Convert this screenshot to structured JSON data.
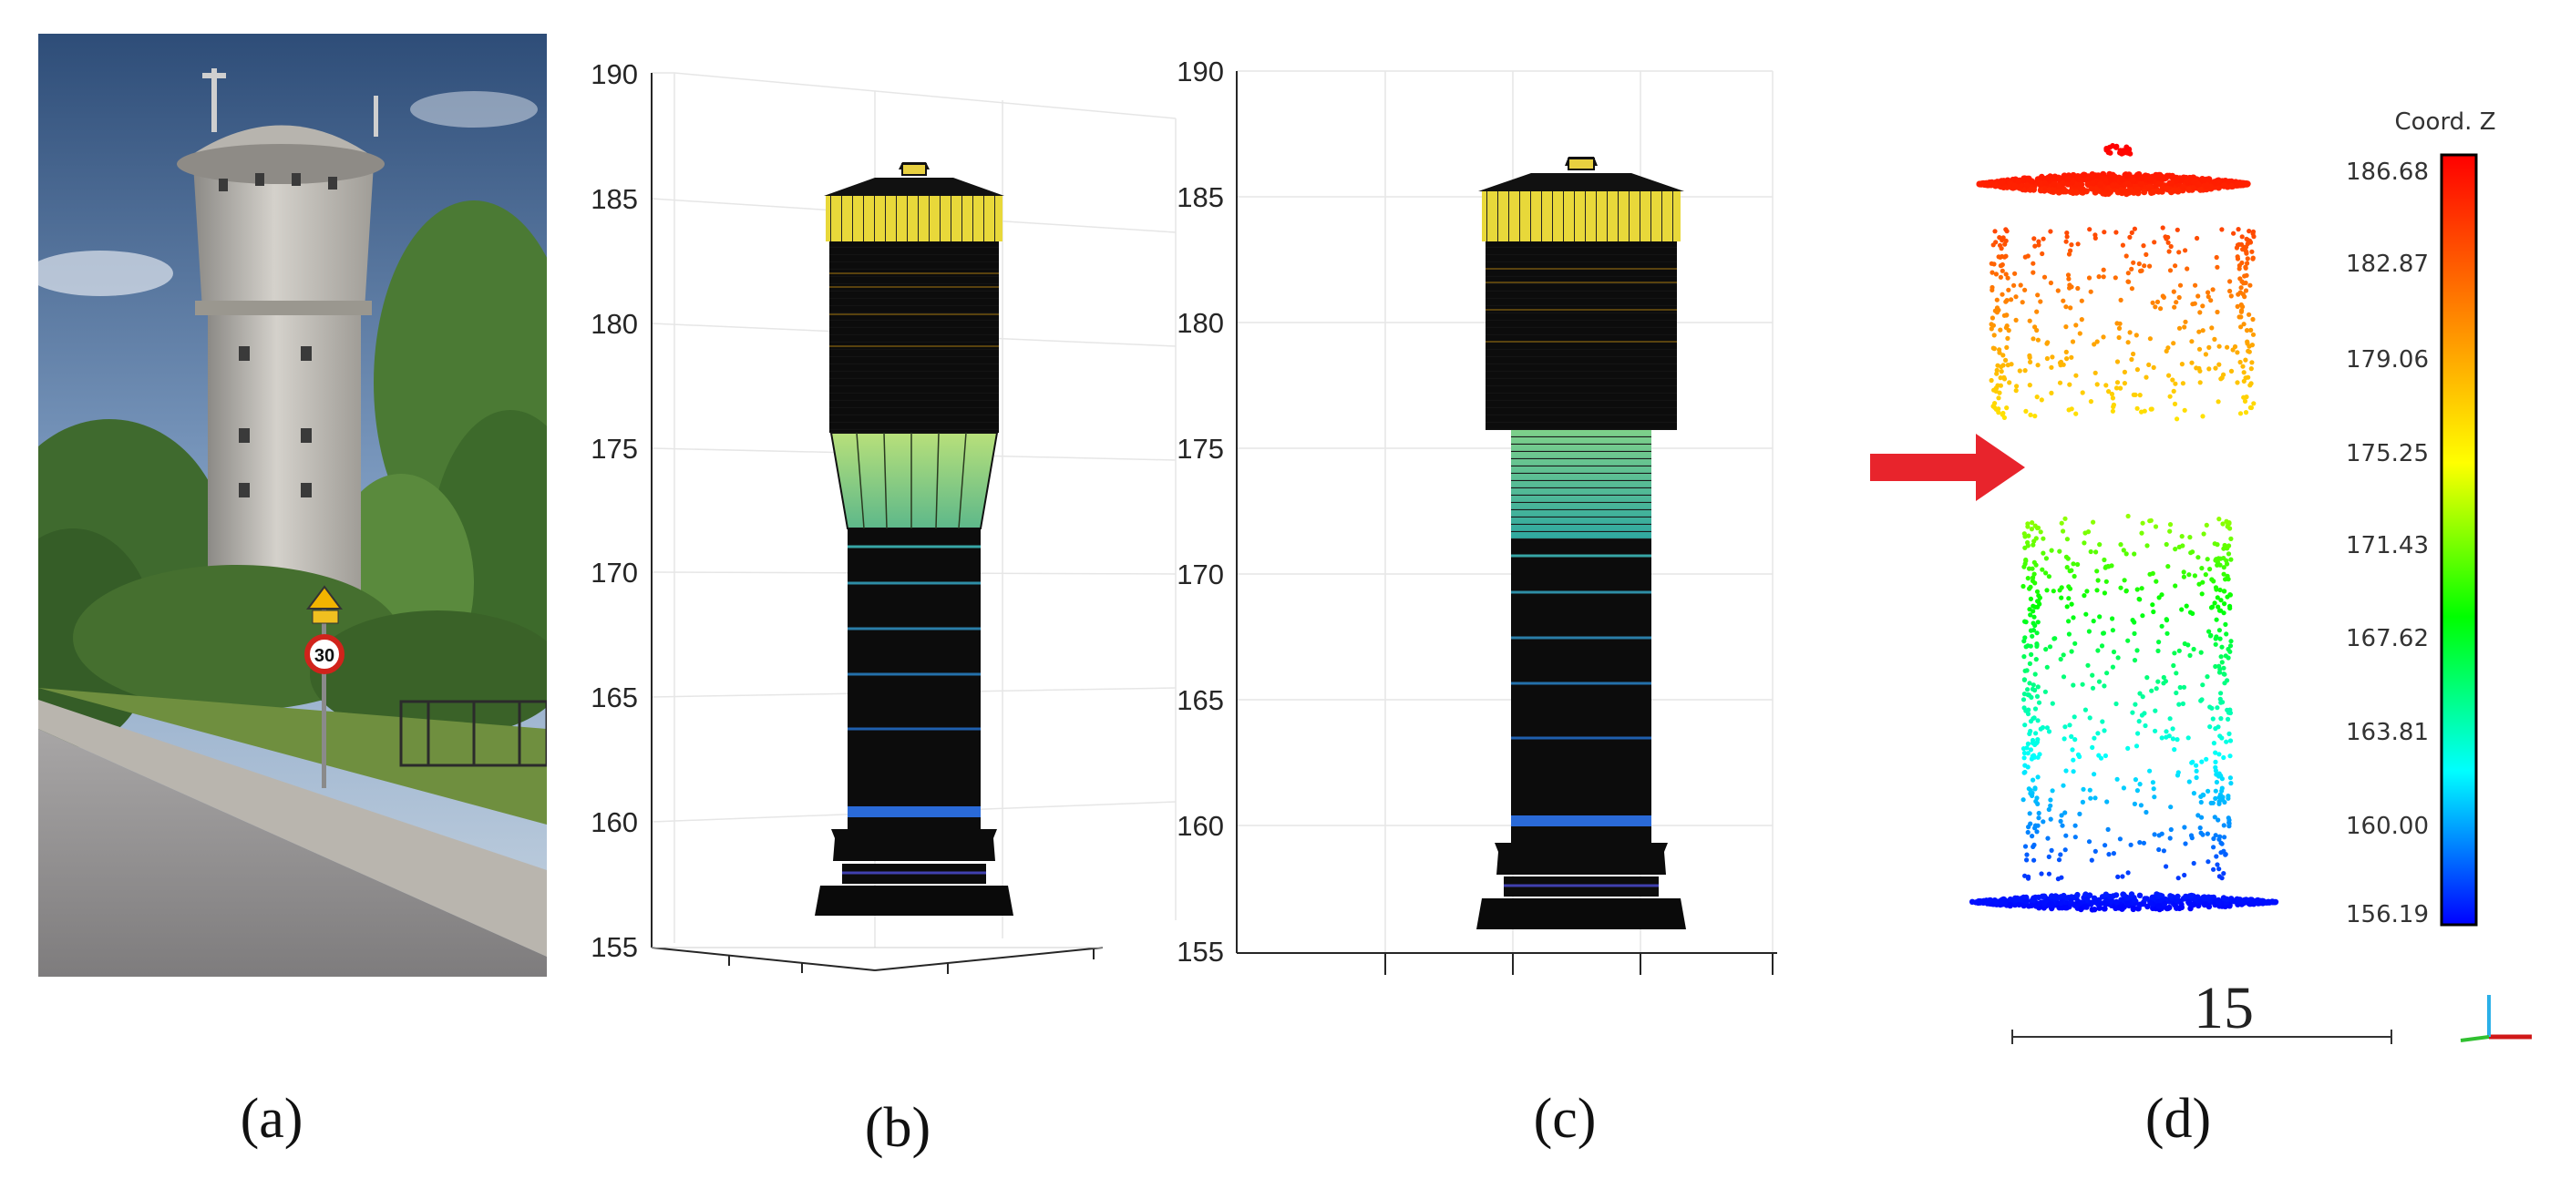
{
  "panels": [
    {
      "label": "(a)"
    },
    {
      "label": "(b)",
      "yticks": [
        "190",
        "185",
        "180",
        "175",
        "170",
        "165",
        "160",
        "155"
      ]
    },
    {
      "label": "(c)",
      "yticks": [
        "190",
        "185",
        "180",
        "175",
        "170",
        "165",
        "160",
        "155"
      ]
    },
    {
      "label": "(d)"
    }
  ],
  "colorbar": {
    "title": "Coord. Z",
    "ticks": [
      "186.68",
      "182.87",
      "179.06",
      "175.25",
      "171.43",
      "167.62",
      "163.81",
      "160.00",
      "156.19"
    ],
    "colors": [
      "#ff0000",
      "#ff8000",
      "#ffff00",
      "#00ff00",
      "#00ffff",
      "#0000ff"
    ]
  },
  "scale_bar": {
    "label": "15"
  },
  "arrow": {
    "color": "#e8242c"
  },
  "photo": {
    "speed_sign": "30"
  }
}
